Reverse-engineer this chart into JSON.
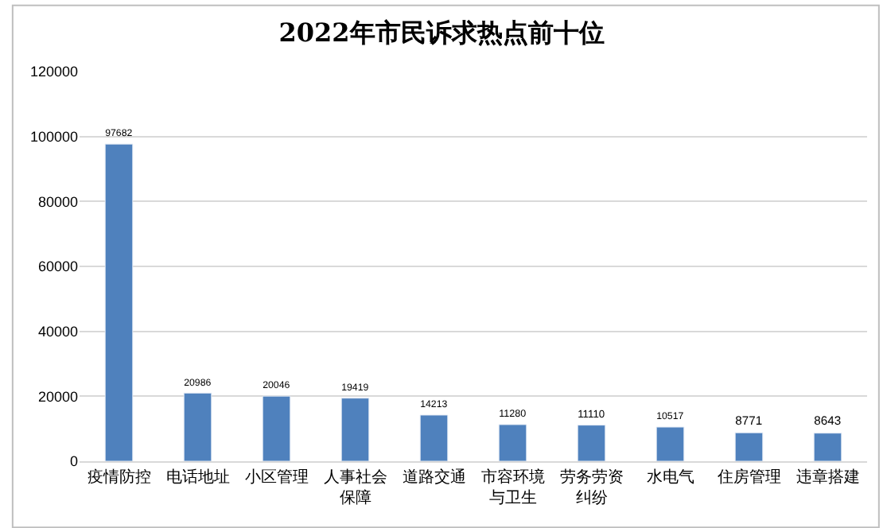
{
  "chart_data": {
    "type": "bar",
    "title": "2022年市民诉求热点前十位",
    "categories": [
      "疫情防控",
      "电话地址",
      "小区管理",
      "人事社会保障",
      "道路交通",
      "市容环境与卫生",
      "劳务劳资纠纷",
      "水电气",
      "住房管理",
      "违章搭建"
    ],
    "values": [
      97682,
      20986,
      20046,
      19419,
      14213,
      11280,
      11110,
      10517,
      8771,
      8643
    ],
    "color": "#4f81bd",
    "ylim": [
      0,
      120000
    ],
    "yticks": [
      0,
      20000,
      40000,
      60000,
      80000,
      100000,
      120000
    ],
    "grid": "y",
    "data_labels": true,
    "legend": false
  }
}
